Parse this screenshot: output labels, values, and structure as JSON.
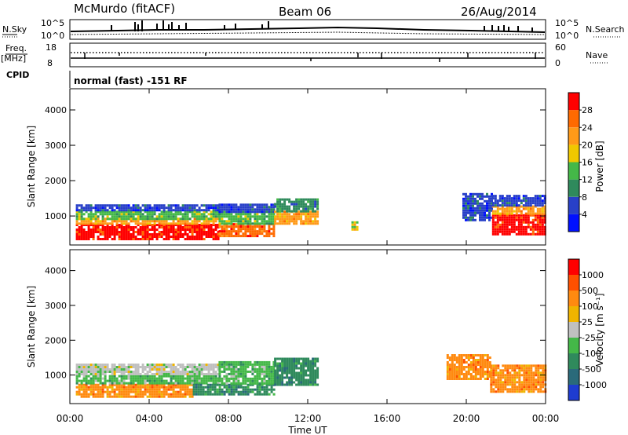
{
  "header": {
    "station": "McMurdo (fitACF)",
    "beam": "Beam 06",
    "date": "26/Aug/2014"
  },
  "strip_noise": {
    "left_label": "N.Sky",
    "right_label": "N.Search",
    "left_ticks": [
      "10^5",
      "10^0"
    ],
    "right_ticks": [
      "10^5",
      "10^0"
    ]
  },
  "strip_freq": {
    "left_label": "Freq.",
    "left_unit": "[MHz]",
    "right_label": "Nave",
    "left_ticks": [
      "18",
      "8"
    ],
    "right_ticks": [
      "60",
      "0"
    ]
  },
  "strip_cpid": {
    "label": "CPID",
    "mode": "normal (fast) -151 RF"
  },
  "chart_data": [
    {
      "type": "heatmap",
      "name": "power-panel",
      "ylabel": "Slant Range [km]",
      "xlabel": "Time UT",
      "x_tick_labels": [
        "00:00",
        "04:00",
        "08:00",
        "12:00",
        "16:00",
        "20:00",
        "00:00"
      ],
      "x_ticks_hours": [
        0,
        4,
        8,
        12,
        16,
        20,
        24
      ],
      "y_ticks": [
        1000,
        2000,
        3000,
        4000
      ],
      "ylim": [
        180,
        4600
      ],
      "colorbar": {
        "label": "Power [dB]",
        "tick_labels": [
          "4",
          "8",
          "12",
          "16",
          "20",
          "24",
          "28"
        ],
        "colors": [
          "#0010ff",
          "#2840c8",
          "#2f8a5c",
          "#44b848",
          "#f0c800",
          "#ff9a18",
          "#ff6a00",
          "#ff0000"
        ]
      },
      "regions": [
        {
          "t0": 0.3,
          "t1": 7.5,
          "r0": 350,
          "r1": 780,
          "level": 7
        },
        {
          "t0": 0.3,
          "t1": 7.5,
          "r0": 780,
          "r1": 950,
          "level": 5
        },
        {
          "t0": 0.3,
          "t1": 7.5,
          "r0": 950,
          "r1": 1150,
          "level": 3
        },
        {
          "t0": 0.3,
          "t1": 7.5,
          "r0": 1150,
          "r1": 1330,
          "level": 1
        },
        {
          "t0": 7.5,
          "t1": 10.3,
          "r0": 430,
          "r1": 800,
          "level": 6
        },
        {
          "t0": 7.5,
          "t1": 10.3,
          "r0": 800,
          "r1": 1150,
          "level": 3
        },
        {
          "t0": 7.5,
          "t1": 10.3,
          "r0": 1150,
          "r1": 1350,
          "level": 1
        },
        {
          "t0": 10.3,
          "t1": 12.5,
          "r0": 800,
          "r1": 1150,
          "level": 5
        },
        {
          "t0": 10.3,
          "t1": 12.5,
          "r0": 1150,
          "r1": 1500,
          "level": 2
        },
        {
          "t0": 14.2,
          "t1": 14.5,
          "r0": 600,
          "r1": 850,
          "level": 4
        },
        {
          "t0": 19.8,
          "t1": 21.3,
          "r0": 900,
          "r1": 1650,
          "level": 1
        },
        {
          "t0": 21.3,
          "t1": 24,
          "r0": 500,
          "r1": 1050,
          "level": 7
        },
        {
          "t0": 21.3,
          "t1": 24,
          "r0": 1050,
          "r1": 1300,
          "level": 5
        },
        {
          "t0": 21.3,
          "t1": 24,
          "r0": 1300,
          "r1": 1600,
          "level": 1
        }
      ]
    },
    {
      "type": "heatmap",
      "name": "velocity-panel",
      "ylabel": "Slant Range [km]",
      "xlabel": "Time UT",
      "x_tick_labels": [
        "00:00",
        "04:00",
        "08:00",
        "12:00",
        "16:00",
        "20:00",
        "00:00"
      ],
      "x_ticks_hours": [
        0,
        4,
        8,
        12,
        16,
        20,
        24
      ],
      "y_ticks": [
        1000,
        2000,
        3000,
        4000
      ],
      "ylim": [
        180,
        4600
      ],
      "colorbar": {
        "label": "Velocity [m s⁻¹]",
        "tick_labels": [
          "1000",
          "500",
          "100",
          "25",
          "-25",
          "-100",
          "-500",
          "-1000"
        ],
        "colors": [
          "#1e3cd0",
          "#2a6a7a",
          "#2f8a5c",
          "#44b848",
          "#c0c0c0",
          "#f0b400",
          "#ff8a10",
          "#ff5000",
          "#ff0000"
        ]
      },
      "regions": [
        {
          "t0": 0.3,
          "t1": 6.2,
          "r0": 350,
          "r1": 750,
          "level": 6
        },
        {
          "t0": 0.3,
          "t1": 7.5,
          "r0": 750,
          "r1": 1000,
          "level": 3
        },
        {
          "t0": 0.3,
          "t1": 7.5,
          "r0": 1000,
          "r1": 1330,
          "level": 4
        },
        {
          "t0": 6.2,
          "t1": 10.3,
          "r0": 450,
          "r1": 750,
          "level": 2
        },
        {
          "t0": 7.5,
          "t1": 10.3,
          "r0": 750,
          "r1": 1400,
          "level": 3
        },
        {
          "t0": 10.3,
          "t1": 12.5,
          "r0": 750,
          "r1": 1500,
          "level": 2
        },
        {
          "t0": 19.0,
          "t1": 21.2,
          "r0": 900,
          "r1": 1600,
          "level": 6
        },
        {
          "t0": 21.2,
          "t1": 24,
          "r0": 500,
          "r1": 1300,
          "level": 6
        }
      ]
    }
  ]
}
